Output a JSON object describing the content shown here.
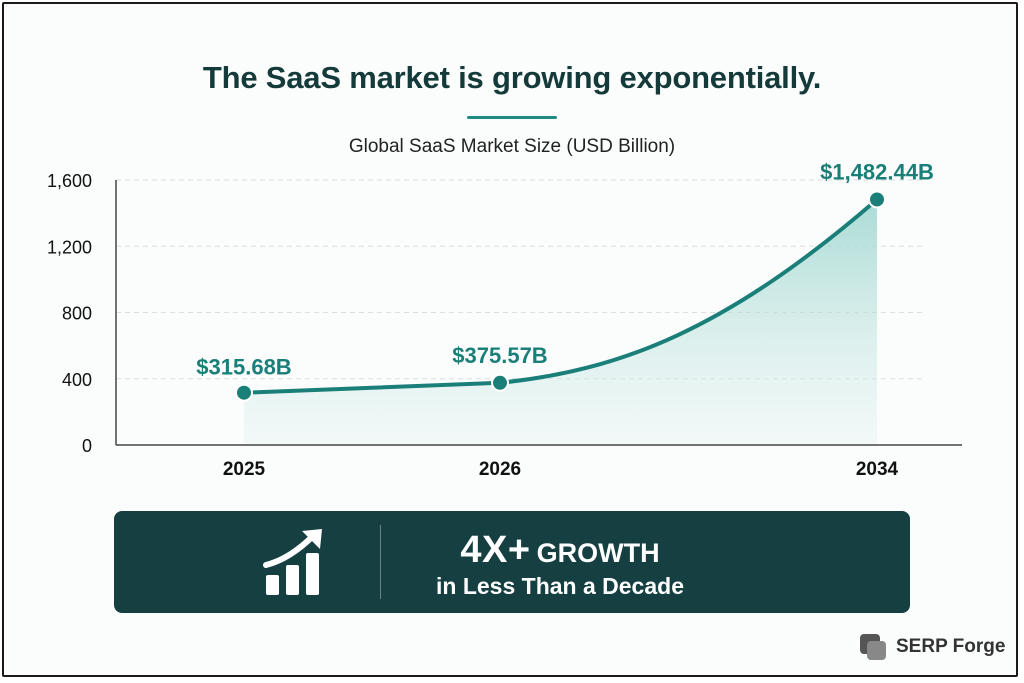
{
  "page": {
    "title": "The SaaS market is growing exponentially.",
    "subtitle": "Global SaaS Market Size (USD Billion)"
  },
  "chart_data": {
    "type": "area",
    "title": "Global SaaS Market Size (USD Billion)",
    "xlabel": "",
    "ylabel": "",
    "categories": [
      "2025",
      "2026",
      "2034"
    ],
    "x": [
      2025,
      2026,
      2034
    ],
    "series": [
      {
        "values": [
          315.68,
          375.57,
          1482.44
        ],
        "labels": [
          "$315.68B",
          "$375.57B",
          "$1,482.44B"
        ]
      }
    ],
    "yticks": [
      0,
      400,
      800,
      1200,
      1600
    ],
    "ytick_labels": [
      "0",
      "400",
      "800",
      "1,200",
      "1,600"
    ],
    "ylim": [
      0,
      1600
    ],
    "grid": true,
    "legend": "none",
    "colors": {
      "line": "#1a7f78",
      "area": "#a9d9d3",
      "label": "#1a7f78"
    }
  },
  "banner": {
    "headline_number": "4X+",
    "headline_word": "GROWTH",
    "subtext": "in Less Than a Decade",
    "icon": "bar-chart-growth-icon",
    "color": "#153f41"
  },
  "brand": {
    "name": "SERP Forge",
    "logo": "serp-forge-logo-icon"
  }
}
